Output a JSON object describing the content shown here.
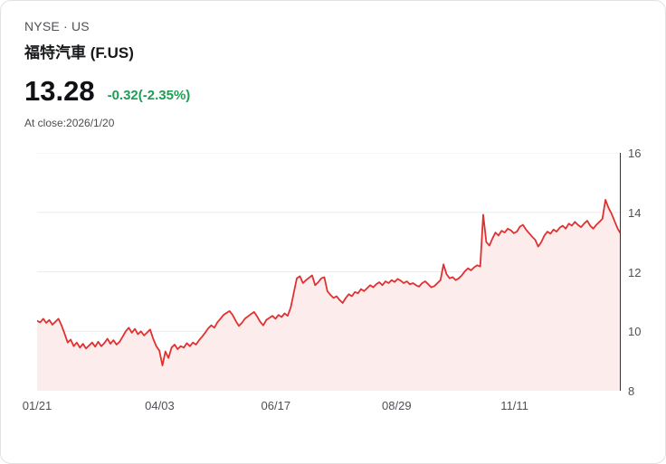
{
  "header": {
    "exchange": "NYSE · US",
    "title": "福特汽車 (F.US)"
  },
  "quote": {
    "price": "13.28",
    "change": "-0.32(-2.35%)",
    "change_color": "#1d9e54",
    "as_of": "At close:2026/1/20"
  },
  "chart_data": {
    "type": "area",
    "title": "福特汽車 (F.US) price history",
    "line_color": "#e03131",
    "fill_color": "#fcecec",
    "grid_color": "#ebebeb",
    "axis_color": "#2f3134",
    "ylim": [
      8,
      16
    ],
    "yticks": [
      8,
      10,
      12,
      14,
      16
    ],
    "xticks": [
      {
        "label": "01/21",
        "pos": 0.0
      },
      {
        "label": "04/03",
        "pos": 0.21
      },
      {
        "label": "06/17",
        "pos": 0.409
      },
      {
        "label": "08/29",
        "pos": 0.616
      },
      {
        "label": "11/11",
        "pos": 0.818
      }
    ],
    "values": [
      10.35,
      10.3,
      10.42,
      10.28,
      10.38,
      10.22,
      10.32,
      10.42,
      10.2,
      9.92,
      9.62,
      9.72,
      9.5,
      9.62,
      9.45,
      9.58,
      9.42,
      9.52,
      9.62,
      9.48,
      9.65,
      9.5,
      9.6,
      9.75,
      9.58,
      9.7,
      9.55,
      9.65,
      9.82,
      10.0,
      10.12,
      9.95,
      10.08,
      9.9,
      10.0,
      9.86,
      9.96,
      10.06,
      9.75,
      9.5,
      9.35,
      8.85,
      9.32,
      9.1,
      9.45,
      9.55,
      9.4,
      9.5,
      9.45,
      9.6,
      9.5,
      9.62,
      9.55,
      9.7,
      9.82,
      9.95,
      10.1,
      10.2,
      10.12,
      10.3,
      10.42,
      10.55,
      10.62,
      10.68,
      10.55,
      10.35,
      10.18,
      10.28,
      10.42,
      10.5,
      10.58,
      10.65,
      10.5,
      10.32,
      10.2,
      10.38,
      10.45,
      10.52,
      10.42,
      10.55,
      10.48,
      10.6,
      10.52,
      10.8,
      11.3,
      11.78,
      11.85,
      11.62,
      11.72,
      11.8,
      11.88,
      11.55,
      11.65,
      11.78,
      11.82,
      11.35,
      11.22,
      11.12,
      11.18,
      11.05,
      10.95,
      11.12,
      11.25,
      11.18,
      11.32,
      11.28,
      11.42,
      11.35,
      11.45,
      11.55,
      11.48,
      11.58,
      11.65,
      11.55,
      11.68,
      11.62,
      11.72,
      11.66,
      11.76,
      11.7,
      11.62,
      11.68,
      11.58,
      11.62,
      11.55,
      11.5,
      11.62,
      11.68,
      11.58,
      11.48,
      11.52,
      11.62,
      11.72,
      12.25,
      11.92,
      11.78,
      11.82,
      11.72,
      11.78,
      11.88,
      12.02,
      12.12,
      12.05,
      12.15,
      12.22,
      12.18,
      13.92,
      13.0,
      12.88,
      13.12,
      13.32,
      13.22,
      13.38,
      13.32,
      13.45,
      13.4,
      13.3,
      13.35,
      13.52,
      13.58,
      13.42,
      13.3,
      13.18,
      13.08,
      12.85,
      13.0,
      13.22,
      13.35,
      13.28,
      13.42,
      13.35,
      13.48,
      13.55,
      13.45,
      13.62,
      13.55,
      13.68,
      13.58,
      13.5,
      13.62,
      13.72,
      13.55,
      13.45,
      13.58,
      13.68,
      13.78,
      14.42,
      14.15,
      13.95,
      13.7,
      13.45,
      13.28
    ]
  }
}
